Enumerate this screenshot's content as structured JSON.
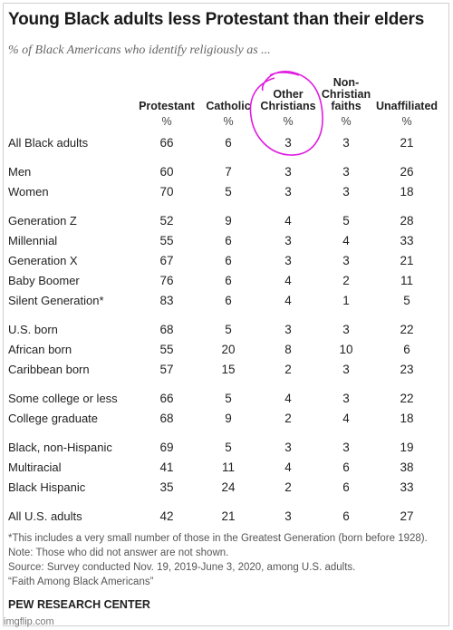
{
  "chart_data": {
    "type": "table",
    "title": "Young Black adults less Protestant than their elders",
    "subtitle": "% of Black Americans who identify religiously as ...",
    "columns": [
      {
        "label_lines": [
          "Protestant"
        ],
        "unit": "%"
      },
      {
        "label_lines": [
          "Catholic"
        ],
        "unit": "%"
      },
      {
        "label_lines": [
          "Other",
          "Christians"
        ],
        "unit": "%"
      },
      {
        "label_lines": [
          "Non-",
          "Christian",
          "faiths"
        ],
        "unit": "%"
      },
      {
        "label_lines": [
          "Unaffiliated"
        ],
        "unit": "%"
      }
    ],
    "rows": [
      {
        "label": "All Black adults",
        "values": [
          "66",
          "6",
          "3",
          "3",
          "21"
        ]
      },
      {
        "label": "Men",
        "values": [
          "60",
          "7",
          "3",
          "3",
          "26"
        ]
      },
      {
        "label": "Women",
        "values": [
          "70",
          "5",
          "3",
          "3",
          "18"
        ]
      },
      {
        "label": "Generation Z",
        "values": [
          "52",
          "9",
          "4",
          "5",
          "28"
        ]
      },
      {
        "label": "Millennial",
        "values": [
          "55",
          "6",
          "3",
          "4",
          "33"
        ]
      },
      {
        "label": "Generation X",
        "values": [
          "67",
          "6",
          "3",
          "3",
          "21"
        ]
      },
      {
        "label": "Baby Boomer",
        "values": [
          "76",
          "6",
          "4",
          "2",
          "11"
        ]
      },
      {
        "label": "Silent Generation*",
        "values": [
          "83",
          "6",
          "4",
          "1",
          "5"
        ]
      },
      {
        "label": "U.S. born",
        "values": [
          "68",
          "5",
          "3",
          "3",
          "22"
        ]
      },
      {
        "label": "African born",
        "values": [
          "55",
          "20",
          "8",
          "10",
          "6"
        ]
      },
      {
        "label": "Caribbean born",
        "values": [
          "57",
          "15",
          "2",
          "3",
          "23"
        ]
      },
      {
        "label": "Some college or less",
        "values": [
          "66",
          "5",
          "4",
          "3",
          "22"
        ]
      },
      {
        "label": "College graduate",
        "values": [
          "68",
          "9",
          "2",
          "4",
          "18"
        ]
      },
      {
        "label": "Black, non-Hispanic",
        "values": [
          "69",
          "5",
          "3",
          "3",
          "19"
        ]
      },
      {
        "label": "Multiracial",
        "values": [
          "41",
          "11",
          "4",
          "6",
          "38"
        ]
      },
      {
        "label": "Black Hispanic",
        "values": [
          "35",
          "24",
          "2",
          "6",
          "33"
        ]
      },
      {
        "label": "All U.S. adults",
        "values": [
          "42",
          "21",
          "3",
          "6",
          "27"
        ]
      }
    ],
    "highlight_color": "#e01ce0"
  },
  "footnotes": [
    "*This includes a very small number of those in the Greatest Generation (born before 1928).",
    "Note: Those who did not answer are not shown.",
    "Source: Survey conducted Nov. 19, 2019-June 3, 2020, among U.S. adults.",
    "“Faith Among Black Americans”"
  ],
  "source_brand": "PEW RESEARCH CENTER",
  "watermark": "imgflip.com"
}
